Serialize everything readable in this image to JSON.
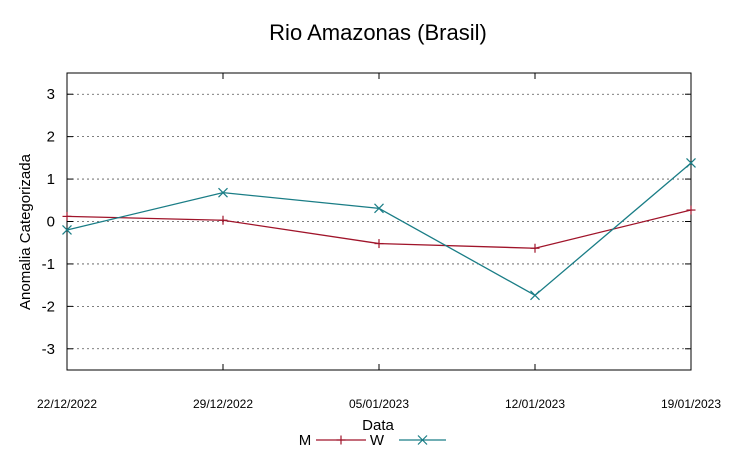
{
  "chart_data": {
    "type": "line",
    "title": "Rio Amazonas (Brasil)",
    "xlabel": "Data",
    "ylabel": "Anomalia Categorizada",
    "categories": [
      "22/12/2022",
      "29/12/2022",
      "05/01/2023",
      "12/01/2023",
      "19/01/2023"
    ],
    "ylim": [
      -3.5,
      3.5
    ],
    "yticks": [
      3,
      2,
      1,
      0,
      -1,
      -2,
      -3
    ],
    "ytick_labels": [
      "3",
      "2",
      "1",
      "0",
      "-1",
      "-2",
      "-3"
    ],
    "grid": true,
    "legend_position": "bottom-center",
    "series": [
      {
        "name": "M",
        "color": "#a0142a",
        "marker": "plus",
        "values": [
          0.12,
          0.03,
          -0.52,
          -0.63,
          0.27
        ]
      },
      {
        "name": "W",
        "color": "#1a7d86",
        "marker": "cross",
        "values": [
          -0.2,
          0.68,
          0.31,
          -1.74,
          1.38
        ]
      }
    ]
  }
}
